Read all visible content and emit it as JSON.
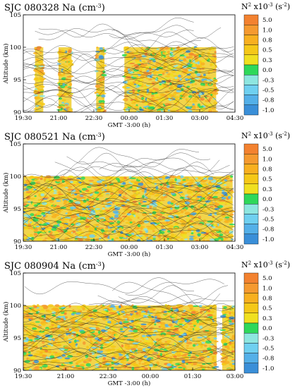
{
  "colors": {
    "bins": [
      "#3a8fd8",
      "#54b0e8",
      "#6fd0f0",
      "#8ee6e0",
      "#2fd85a",
      "#f0e020",
      "#f5c818",
      "#f8b020",
      "#f59a30",
      "#f38230"
    ],
    "contour": "#1a1a1a",
    "background_fill": "#f2d44a"
  },
  "colorbar": {
    "title_prefix": "N",
    "title_sup": "2",
    "title_mid": " x10",
    "title_exp": "-3",
    "title_unit": " (s",
    "title_unit_exp": "-2",
    "title_end": ")",
    "labels": [
      "5.0",
      "1.0",
      "0.8",
      "0.5",
      "0.3",
      "0.0",
      "-0.3",
      "-0.5",
      "-0.8",
      "-1.0"
    ]
  },
  "chart_data": [
    {
      "type": "heatmap",
      "title": "SJC  080328  Na (cm",
      "title_exp": "-3",
      "title_end": ")",
      "xlabel": "GMT -3:00 (h)",
      "ylabel": "Altitude (km)",
      "xticks": [
        "19:30",
        "21:00",
        "22:30",
        "00:00",
        "01:30",
        "03:00",
        "04:30"
      ],
      "yticks": [
        "90",
        "95",
        "100",
        "105"
      ],
      "xlim": [
        19.5,
        28.5
      ],
      "ylim": [
        90,
        105
      ],
      "data_blocks": [
        [
          20.0,
          20.35
        ],
        [
          21.0,
          21.55
        ],
        [
          22.6,
          22.95
        ],
        [
          23.8,
          27.7
        ]
      ],
      "data_top_km": 100
    },
    {
      "type": "heatmap",
      "title": "SJC  080521  Na (cm",
      "title_exp": "-3",
      "title_end": ")",
      "xlabel": "GMT -3:00 (h)",
      "ylabel": "Altitude (km)",
      "xticks": [
        "19:30",
        "21:00",
        "22:30",
        "00:00",
        "01:30",
        "03:00",
        "04:30"
      ],
      "yticks": [
        "90",
        "95",
        "100",
        "105"
      ],
      "xlim": [
        19.5,
        28.5
      ],
      "ylim": [
        90,
        105
      ],
      "data_blocks": [
        [
          19.5,
          28.4
        ]
      ],
      "data_top_km": 100
    },
    {
      "type": "heatmap",
      "title": "SJC  080904  Na (cm",
      "title_exp": "-3",
      "title_end": ")",
      "xlabel": "GMT -3:00 (h)",
      "ylabel": "Altitude (km)",
      "xticks": [
        "19:30",
        "21:00",
        "22:30",
        "00:00",
        "01:30",
        "03:00"
      ],
      "yticks": [
        "90",
        "95",
        "100",
        "105"
      ],
      "xlim": [
        19.5,
        27.0
      ],
      "ylim": [
        90,
        105
      ],
      "data_blocks": [
        [
          19.5,
          26.35
        ],
        [
          26.55,
          27.0
        ]
      ],
      "data_top_km": 100
    }
  ]
}
